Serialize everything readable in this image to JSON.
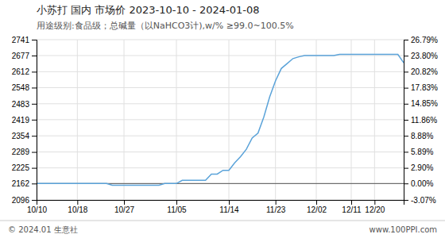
{
  "chart_data": {
    "type": "line",
    "title": "小苏打 国内 市场价 2023-10-10 - 2024-01-08",
    "subtitle": "用途级别:食品级；总碱量（以NaHCO3计),w/% ≥99.0~100.5%",
    "footer": [
      "© 2024.01 生意社",
      "www.100PPI.com"
    ],
    "categories": [
      "10/10",
      null,
      null,
      null,
      null,
      null,
      null,
      "10/18",
      null,
      null,
      null,
      null,
      null,
      null,
      null,
      "10/27",
      null,
      null,
      null,
      null,
      null,
      null,
      null,
      null,
      "11/05",
      null,
      null,
      null,
      null,
      null,
      null,
      null,
      null,
      "11/14",
      null,
      null,
      null,
      null,
      null,
      null,
      null,
      "11/23",
      null,
      null,
      null,
      null,
      null,
      null,
      "12/02",
      null,
      null,
      null,
      null,
      null,
      "12/11",
      null,
      null,
      null,
      "12/20",
      null,
      null,
      null,
      null,
      null
    ],
    "values": [
      2162,
      2162,
      2162,
      2162,
      2162,
      2162,
      2162,
      2162,
      2162,
      2162,
      2162,
      2162,
      2162,
      2155,
      2155,
      2155,
      2155,
      2155,
      2155,
      2155,
      2155,
      2155,
      2162,
      2162,
      2162,
      2175,
      2175,
      2175,
      2175,
      2175,
      2200,
      2200,
      2215,
      2215,
      2245,
      2270,
      2300,
      2345,
      2365,
      2430,
      2510,
      2575,
      2625,
      2645,
      2665,
      2672,
      2677,
      2677,
      2677,
      2677,
      2677,
      2677,
      2682,
      2682,
      2682,
      2682,
      2682,
      2682,
      2682,
      2682,
      2682,
      2682,
      2682,
      2648
    ],
    "color": "#5ba3d9",
    "baseline": 2162,
    "ylim": [
      2096,
      2741
    ],
    "yticks": [
      2096,
      2162,
      2225,
      2289,
      2354,
      2419,
      2483,
      2548,
      2612,
      2677,
      2741
    ],
    "y2lim": [
      -3.07,
      26.79
    ],
    "y2ticks": [
      {
        "value": -3.07,
        "label": "-3.07%"
      },
      {
        "value": 0,
        "label": "0.00%"
      },
      {
        "value": 2.9,
        "label": "2.90%"
      },
      {
        "value": 5.89,
        "label": "5.89%"
      },
      {
        "value": 8.88,
        "label": "8.88%"
      },
      {
        "value": 11.86,
        "label": "11.86%"
      },
      {
        "value": 14.85,
        "label": "14.85%"
      },
      {
        "value": 17.83,
        "label": "17.83%"
      },
      {
        "value": 20.82,
        "label": "20.82%"
      },
      {
        "value": 23.8,
        "label": "23.80%"
      },
      {
        "value": 26.79,
        "label": "26.79%"
      }
    ],
    "grid": true
  }
}
